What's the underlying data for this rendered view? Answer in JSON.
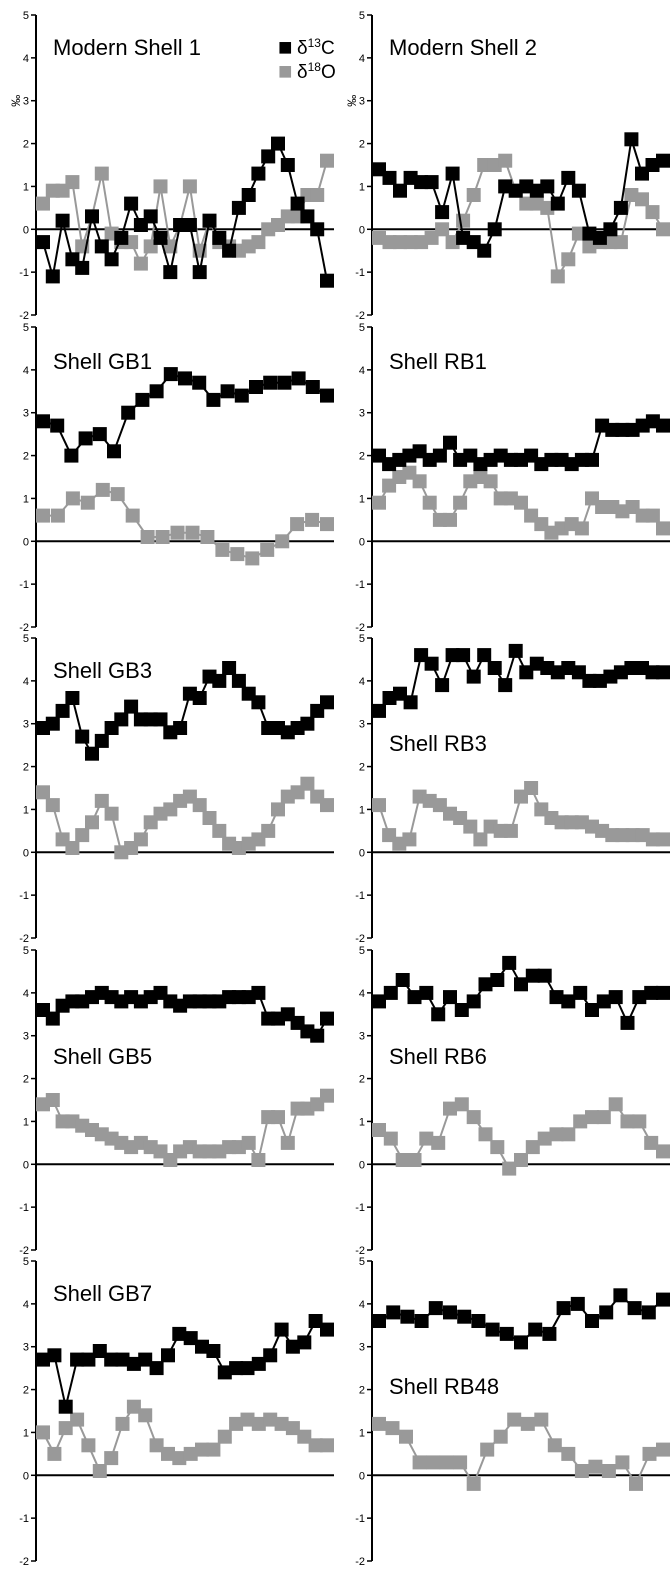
{
  "legend": {
    "c13": {
      "symbol": "■",
      "label_main": "δ",
      "label_sup": "13",
      "label_end": "C",
      "color": "#000000"
    },
    "o18": {
      "symbol": "■",
      "label_main": "δ",
      "label_sup": "18",
      "label_end": "O",
      "color": "#999999"
    }
  },
  "colors": {
    "c13": "#000000",
    "o18": "#999999",
    "axis": "#000000"
  },
  "chart_data": [
    {
      "type": "line",
      "title": "Modern Shell 1",
      "ylabel": "‰",
      "ylim": [
        -2,
        5
      ],
      "yticks": [
        "5",
        "4",
        "3",
        "2",
        "1",
        "0",
        "-1",
        "-2"
      ],
      "legend": "top-right",
      "series": [
        {
          "name": "δ13C",
          "values": [
            -0.3,
            -1.1,
            0.2,
            -0.7,
            -0.9,
            0.3,
            -0.4,
            -0.7,
            -0.2,
            0.6,
            0.1,
            0.3,
            -0.2,
            -1.0,
            0.1,
            0.1,
            -1.0,
            0.2,
            -0.2,
            -0.5,
            0.5,
            0.8,
            1.3,
            1.7,
            2.0,
            1.5,
            0.6,
            0.3,
            0.0,
            -1.2
          ]
        },
        {
          "name": "δ18O",
          "values": [
            0.6,
            0.9,
            0.9,
            1.1,
            -0.4,
            0.3,
            1.3,
            -0.1,
            -0.3,
            -0.3,
            -0.8,
            -0.4,
            1.0,
            -0.4,
            0.1,
            1.0,
            -0.5,
            0.2,
            -0.3,
            -0.4,
            -0.5,
            -0.4,
            -0.3,
            0.0,
            0.1,
            0.3,
            0.3,
            0.8,
            0.8,
            1.6
          ]
        }
      ]
    },
    {
      "type": "line",
      "title": "Modern Shell 2",
      "ylabel": "‰",
      "ylim": [
        -2,
        5
      ],
      "yticks": [
        "5",
        "4",
        "3",
        "2",
        "1",
        "0",
        "-1",
        "-2"
      ],
      "series": [
        {
          "name": "δ13C",
          "values": [
            1.4,
            1.2,
            0.9,
            1.2,
            1.1,
            1.1,
            0.4,
            1.3,
            -0.2,
            -0.3,
            -0.5,
            0.0,
            1.0,
            0.9,
            1.0,
            0.9,
            1.0,
            0.6,
            1.2,
            0.9,
            -0.1,
            -0.2,
            0.0,
            0.5,
            2.1,
            1.3,
            1.5,
            1.6
          ]
        },
        {
          "name": "δ18O",
          "values": [
            -0.2,
            -0.3,
            -0.3,
            -0.3,
            -0.3,
            -0.2,
            0.0,
            -0.3,
            0.2,
            0.8,
            1.5,
            1.5,
            1.6,
            0.9,
            0.6,
            0.6,
            0.5,
            -1.1,
            -0.7,
            -0.1,
            -0.4,
            -0.3,
            -0.3,
            -0.3,
            0.8,
            0.7,
            0.4,
            0.0
          ]
        }
      ]
    },
    {
      "type": "line",
      "title": "Shell GB1",
      "ylim": [
        -2,
        5
      ],
      "yticks": [
        "5",
        "4",
        "3",
        "2",
        "1",
        "0",
        "-1",
        "-2"
      ],
      "series": [
        {
          "name": "δ13C",
          "values": [
            2.8,
            2.7,
            2.0,
            2.4,
            2.5,
            2.1,
            3.0,
            3.3,
            3.5,
            3.9,
            3.8,
            3.7,
            3.3,
            3.5,
            3.4,
            3.6,
            3.7,
            3.7,
            3.8,
            3.6,
            3.4
          ]
        },
        {
          "name": "δ18O",
          "values": [
            0.6,
            0.6,
            1.0,
            0.9,
            1.2,
            1.1,
            0.6,
            0.1,
            0.1,
            0.2,
            0.2,
            0.1,
            -0.2,
            -0.3,
            -0.4,
            -0.2,
            0.0,
            0.4,
            0.5,
            0.4
          ]
        }
      ]
    },
    {
      "type": "line",
      "title": "Shell RB1",
      "ylim": [
        -2,
        5
      ],
      "yticks": [
        "5",
        "4",
        "3",
        "2",
        "1",
        "0",
        "-1",
        "-2"
      ],
      "series": [
        {
          "name": "δ13C",
          "values": [
            2.0,
            1.8,
            1.9,
            2.0,
            2.1,
            1.9,
            2.0,
            2.3,
            1.9,
            2.0,
            1.8,
            1.9,
            2.0,
            1.9,
            1.9,
            2.0,
            1.8,
            1.9,
            1.9,
            1.8,
            1.9,
            1.9,
            2.7,
            2.6,
            2.6,
            2.6,
            2.7,
            2.8,
            2.7
          ]
        },
        {
          "name": "δ18O",
          "values": [
            0.9,
            1.3,
            1.5,
            1.6,
            1.4,
            0.9,
            0.5,
            0.5,
            0.9,
            1.4,
            1.5,
            1.4,
            1.0,
            1.0,
            0.9,
            0.6,
            0.4,
            0.2,
            0.3,
            0.4,
            0.3,
            1.0,
            0.8,
            0.8,
            0.7,
            0.8,
            0.6,
            0.6,
            0.3
          ]
        }
      ]
    },
    {
      "type": "line",
      "title": "Shell GB3",
      "ylim": [
        -2,
        5
      ],
      "yticks": [
        "5",
        "4",
        "3",
        "2",
        "1",
        "0",
        "-1",
        "-2"
      ],
      "series": [
        {
          "name": "δ13C",
          "values": [
            2.9,
            3.0,
            3.3,
            3.6,
            2.7,
            2.3,
            2.6,
            2.9,
            3.1,
            3.4,
            3.1,
            3.1,
            3.1,
            2.8,
            2.9,
            3.7,
            3.6,
            4.1,
            4.0,
            4.3,
            4.0,
            3.7,
            3.5,
            2.9,
            2.9,
            2.8,
            2.9,
            3.0,
            3.3,
            3.5
          ]
        },
        {
          "name": "δ18O",
          "values": [
            1.4,
            1.1,
            0.3,
            0.1,
            0.4,
            0.7,
            1.2,
            0.9,
            0.0,
            0.1,
            0.3,
            0.7,
            0.9,
            1.0,
            1.2,
            1.3,
            1.1,
            0.8,
            0.5,
            0.2,
            0.1,
            0.2,
            0.3,
            0.5,
            1.0,
            1.3,
            1.4,
            1.6,
            1.3,
            1.1
          ]
        }
      ]
    },
    {
      "type": "line",
      "title": "Shell RB3",
      "ylim": [
        -2,
        5
      ],
      "yticks": [
        "5",
        "4",
        "3",
        "2",
        "1",
        "0",
        "-1",
        "-2"
      ],
      "series": [
        {
          "name": "δ13C",
          "values": [
            3.3,
            3.6,
            3.7,
            3.5,
            4.6,
            4.4,
            3.9,
            4.6,
            4.6,
            4.1,
            4.6,
            4.3,
            3.9,
            4.7,
            4.2,
            4.4,
            4.3,
            4.2,
            4.3,
            4.2,
            4.0,
            4.0,
            4.1,
            4.2,
            4.3,
            4.3,
            4.2,
            4.2
          ]
        },
        {
          "name": "δ18O",
          "values": [
            1.1,
            0.4,
            0.2,
            0.3,
            1.3,
            1.2,
            1.1,
            0.9,
            0.8,
            0.6,
            0.3,
            0.6,
            0.5,
            0.5,
            1.3,
            1.5,
            1.0,
            0.8,
            0.7,
            0.7,
            0.7,
            0.6,
            0.5,
            0.4,
            0.4,
            0.4,
            0.4,
            0.3,
            0.3
          ]
        }
      ]
    },
    {
      "type": "line",
      "title": "Shell GB5",
      "ylim": [
        -2,
        5
      ],
      "yticks": [
        "5",
        "4",
        "3",
        "2",
        "1",
        "0",
        "-1",
        "-2"
      ],
      "series": [
        {
          "name": "δ13C",
          "values": [
            3.6,
            3.4,
            3.7,
            3.8,
            3.8,
            3.9,
            4.0,
            3.9,
            3.8,
            3.9,
            3.8,
            3.9,
            4.0,
            3.8,
            3.7,
            3.8,
            3.8,
            3.8,
            3.8,
            3.9,
            3.9,
            3.9,
            4.0,
            3.4,
            3.4,
            3.5,
            3.3,
            3.1,
            3.0,
            3.4
          ]
        },
        {
          "name": "δ18O",
          "values": [
            1.4,
            1.5,
            1.0,
            1.0,
            0.9,
            0.8,
            0.7,
            0.6,
            0.5,
            0.4,
            0.5,
            0.4,
            0.3,
            0.1,
            0.3,
            0.4,
            0.3,
            0.3,
            0.3,
            0.4,
            0.4,
            0.5,
            0.1,
            1.1,
            1.1,
            0.5,
            1.3,
            1.3,
            1.4,
            1.6
          ]
        }
      ]
    },
    {
      "type": "line",
      "title": "Shell RB6",
      "ylim": [
        -2,
        5
      ],
      "yticks": [
        "5",
        "4",
        "3",
        "2",
        "1",
        "0",
        "-1",
        "-2"
      ],
      "series": [
        {
          "name": "δ13C",
          "values": [
            3.8,
            4.0,
            4.3,
            3.9,
            4.0,
            3.5,
            3.9,
            3.6,
            3.8,
            4.2,
            4.3,
            4.7,
            4.2,
            4.4,
            4.4,
            3.9,
            3.8,
            4.0,
            3.6,
            3.8,
            3.9,
            3.3,
            3.9,
            4.0,
            4.0
          ]
        },
        {
          "name": "δ18O",
          "values": [
            0.8,
            0.6,
            0.1,
            0.1,
            0.6,
            0.5,
            1.3,
            1.4,
            1.1,
            0.7,
            0.4,
            -0.1,
            0.1,
            0.4,
            0.6,
            0.7,
            0.7,
            1.0,
            1.1,
            1.1,
            1.4,
            1.0,
            1.0,
            0.5,
            0.3
          ]
        }
      ]
    },
    {
      "type": "line",
      "title": "Shell GB7",
      "ylim": [
        -2,
        5
      ],
      "yticks": [
        "5",
        "4",
        "3",
        "2",
        "1",
        "0",
        "-1",
        "-2"
      ],
      "series": [
        {
          "name": "δ13C",
          "values": [
            2.7,
            2.8,
            1.6,
            2.7,
            2.7,
            2.9,
            2.7,
            2.7,
            2.6,
            2.7,
            2.5,
            2.8,
            3.3,
            3.2,
            3.0,
            2.9,
            2.4,
            2.5,
            2.5,
            2.6,
            2.8,
            3.4,
            3.0,
            3.1,
            3.6,
            3.4
          ]
        },
        {
          "name": "δ18O",
          "values": [
            1.0,
            0.5,
            1.1,
            1.3,
            0.7,
            0.1,
            0.4,
            1.2,
            1.6,
            1.4,
            0.7,
            0.5,
            0.4,
            0.5,
            0.6,
            0.6,
            0.9,
            1.2,
            1.3,
            1.2,
            1.3,
            1.2,
            1.1,
            0.9,
            0.7,
            0.7
          ]
        }
      ]
    },
    {
      "type": "line",
      "title": "Shell RB48",
      "ylim": [
        -2,
        5
      ],
      "yticks": [
        "5",
        "4",
        "3",
        "2",
        "1",
        "0",
        "-1",
        "-2"
      ],
      "series": [
        {
          "name": "δ13C",
          "values": [
            3.6,
            3.8,
            3.7,
            3.6,
            3.9,
            3.8,
            3.7,
            3.6,
            3.4,
            3.3,
            3.1,
            3.4,
            3.3,
            3.9,
            4.0,
            3.6,
            3.8,
            4.2,
            3.9,
            3.8,
            4.1
          ]
        },
        {
          "name": "δ18O",
          "values": [
            1.2,
            1.1,
            0.9,
            0.3,
            0.3,
            0.3,
            0.3,
            -0.2,
            0.6,
            0.9,
            1.3,
            1.2,
            1.3,
            0.7,
            0.5,
            0.1,
            0.2,
            0.1,
            0.3,
            -0.2,
            0.5,
            0.6
          ]
        }
      ]
    }
  ]
}
